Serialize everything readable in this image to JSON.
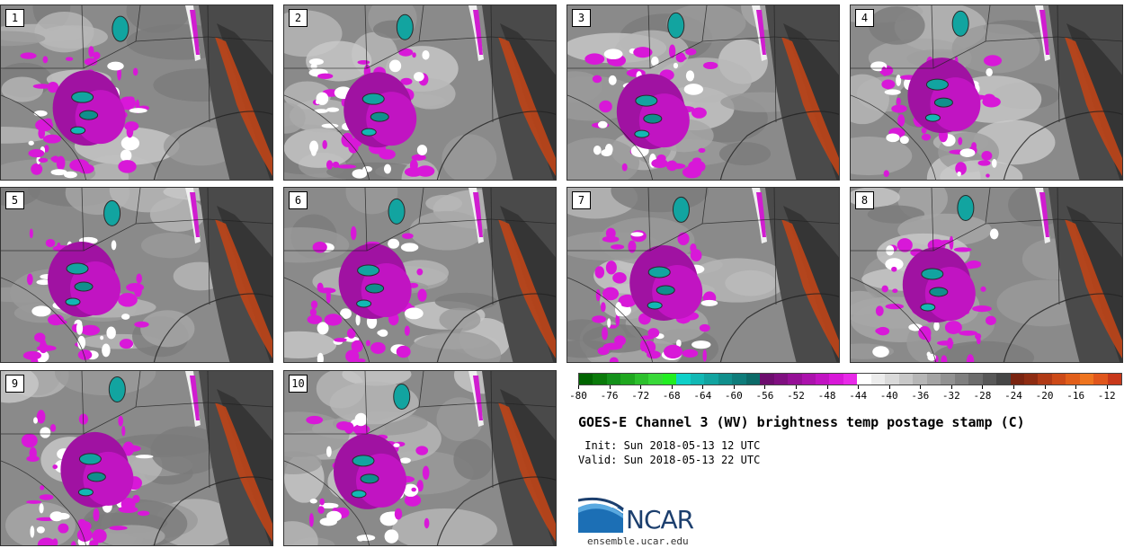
{
  "panels": [
    {
      "label": "1"
    },
    {
      "label": "2"
    },
    {
      "label": "3"
    },
    {
      "label": "4"
    },
    {
      "label": "5"
    },
    {
      "label": "6"
    },
    {
      "label": "7"
    },
    {
      "label": "8"
    },
    {
      "label": "9"
    },
    {
      "label": "10"
    }
  ],
  "colorbar": {
    "tick_labels": [
      "-80",
      "-76",
      "-72",
      "-68",
      "-64",
      "-60",
      "-56",
      "-52",
      "-48",
      "-44",
      "-40",
      "-36",
      "-32",
      "-28",
      "-24",
      "-20",
      "-16",
      "-12"
    ],
    "min": -80,
    "max": -10,
    "colors": [
      "#006400",
      "#0a7a0a",
      "#14901a",
      "#1fa71f",
      "#2dc02d",
      "#39d839",
      "#22ee22",
      "#0fd0c8",
      "#12b8b4",
      "#12a4a0",
      "#108f8c",
      "#0e7c7a",
      "#0c6a68",
      "#6d0d6e",
      "#7f0f80",
      "#951096",
      "#ab12ac",
      "#c114c2",
      "#d818d8",
      "#e82ae8",
      "#ffffff",
      "#ececec",
      "#dadada",
      "#c8c8c8",
      "#b6b6b6",
      "#a4a4a4",
      "#929292",
      "#7f7f7f",
      "#6c6c6c",
      "#585858",
      "#464646",
      "#7a2410",
      "#8e2c12",
      "#b03a16",
      "#cc4a18",
      "#e15e1a",
      "#ee741f",
      "#e0561c",
      "#c8381a"
    ]
  },
  "title": "GOES-E Channel 3 (WV) brightness temp postage stamp (C)",
  "init_line": " Init: Sun 2018-05-13 12 UTC",
  "valid_line": "Valid: Sun 2018-05-13 22 UTC",
  "logo_text": "NCAR",
  "logo_url": "ensemble.ucar.edu"
}
